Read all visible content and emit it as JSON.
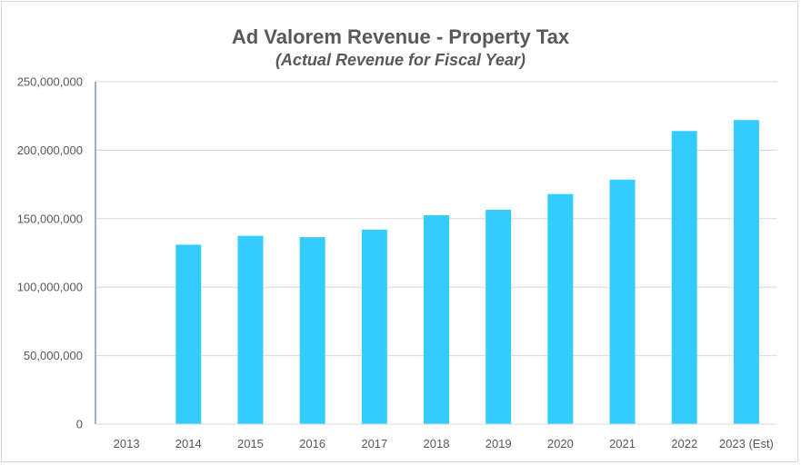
{
  "chart_data": {
    "type": "bar",
    "title": "Ad Valorem Revenue - Property Tax",
    "subtitle": "(Actual Revenue for Fiscal Year)",
    "xlabel": "",
    "ylabel": "",
    "categories": [
      "2013",
      "2014",
      "2015",
      "2016",
      "2017",
      "2018",
      "2019",
      "2020",
      "2021",
      "2022",
      "2023 (Est)"
    ],
    "values": [
      0,
      131000000,
      137500000,
      136500000,
      142000000,
      152500000,
      156500000,
      168000000,
      178500000,
      214000000,
      222000000
    ],
    "ylim": [
      0,
      250000000
    ],
    "yticks": [
      0,
      50000000,
      100000000,
      150000000,
      200000000,
      250000000
    ],
    "ytick_labels": [
      "0",
      "50,000,000",
      "100,000,000",
      "150,000,000",
      "200,000,000",
      "250,000,000"
    ],
    "grid": true,
    "legend": "none",
    "bar_color": "#33ccff",
    "gridline_color": "#d9d9d9",
    "axis_color": "#1f6f8b"
  }
}
